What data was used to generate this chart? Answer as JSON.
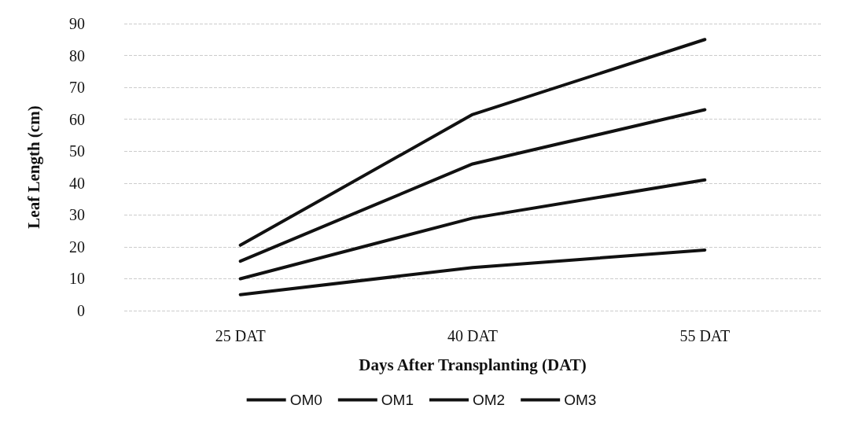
{
  "chart_data": {
    "type": "line",
    "xlabel": "Days After Transplanting (DAT)",
    "ylabel": "Leaf Length (cm)",
    "categories": [
      "25 DAT",
      "40 DAT",
      "55 DAT"
    ],
    "series": [
      {
        "name": "OM0",
        "color": "#111111",
        "values": [
          5,
          13.5,
          19
        ]
      },
      {
        "name": "OM1",
        "color": "#111111",
        "values": [
          10,
          29,
          41
        ]
      },
      {
        "name": "OM2",
        "color": "#111111",
        "values": [
          15.5,
          46,
          63
        ]
      },
      {
        "name": "OM3",
        "color": "#111111",
        "values": [
          20.5,
          61.5,
          85
        ]
      }
    ],
    "ylim": [
      0,
      90
    ],
    "yticks": [
      0,
      10,
      20,
      30,
      40,
      50,
      60,
      70,
      80,
      90
    ],
    "grid": "y",
    "legend": "bottom",
    "marker": "none",
    "line_style": "solid"
  }
}
